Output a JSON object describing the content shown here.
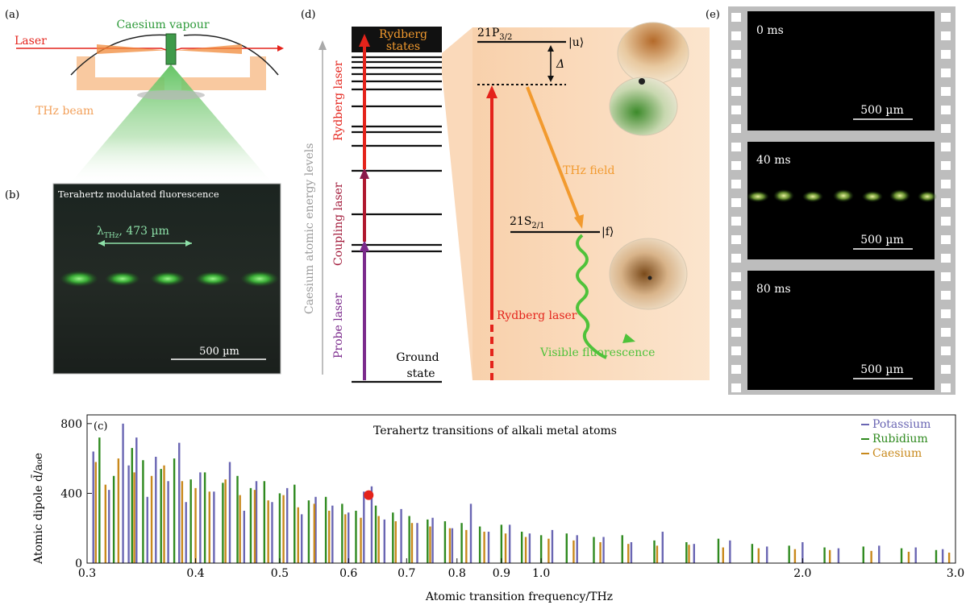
{
  "panel_a": {
    "tag": "(a)",
    "vapour_label": "Caesium vapour",
    "laser_label": "Laser",
    "thz_label": "THz beam"
  },
  "panel_b": {
    "tag": "(b)",
    "title": "Terahertz modulated fluorescence",
    "lambda_symbol": "λ",
    "lambda_sub": "THz",
    "lambda_value": ", 473 µm",
    "scalebar": "500 µm"
  },
  "panel_d": {
    "tag": "(d)",
    "axis_label": "Caesium atomic energy levels",
    "rydberg_states": [
      "Rydberg",
      "states"
    ],
    "ground_state": [
      "Ground",
      "state"
    ],
    "probe_laser": "Probe laser",
    "coupling_laser": "Coupling laser",
    "rydberg_laser_vertical": "Rydberg laser",
    "level_upper": "21P",
    "level_upper_sub": "3/2",
    "ket_upper": "|u⟩",
    "detuning": "Δ",
    "thz_field": "THz field",
    "level_lower": "21S",
    "level_lower_sub": "2/1",
    "ket_lower": "|f⟩",
    "rydberg_laser": "Rydberg laser",
    "visible_fluorescence": "Visible fluorescence"
  },
  "panel_e": {
    "tag": "(e)",
    "frames": [
      {
        "time": "0 ms",
        "scalebar": "500 µm"
      },
      {
        "time": "40 ms",
        "scalebar": "500 µm"
      },
      {
        "time": "80 ms",
        "scalebar": "500 µm"
      }
    ]
  },
  "colors": {
    "laser_red": "#e4231b",
    "probe_purple": "#7b2a8c",
    "thz_orange": "#f29a2e",
    "fluor_green": "#4fc23a",
    "potassium": "#6a66b3",
    "rubidium": "#2f8a1f",
    "caesium": "#c8891c"
  },
  "chart_data": {
    "type": "bar",
    "tag": "(c)",
    "title": "Terahertz transitions of alkali metal atoms",
    "xlabel": "Atomic transition frequency/THz",
    "ylabel": "Atomic dipole d̄/a₀e",
    "x_scale": "log",
    "xlim": [
      0.3,
      3.0
    ],
    "ylim": [
      0,
      850
    ],
    "x_ticks": [
      0.3,
      0.4,
      0.5,
      0.6,
      0.7,
      0.8,
      0.9,
      1.0,
      2.0,
      3.0
    ],
    "x_tick_labels": [
      "0.3",
      "0.4",
      "0.5",
      "0.6",
      "0.7",
      "0.8",
      "0.9",
      "1.0",
      "2.0",
      "3.0"
    ],
    "y_ticks": [
      0,
      400,
      800
    ],
    "y_tick_labels": [
      "0",
      "400",
      "800"
    ],
    "legend_position": "top-right",
    "highlight_point": {
      "x": 0.633,
      "y": 390
    },
    "series": [
      {
        "name": "Potassium",
        "color": "#6a66b3",
        "x": [
          0.305,
          0.318,
          0.33,
          0.335,
          0.342,
          0.352,
          0.36,
          0.372,
          0.383,
          0.39,
          0.405,
          0.42,
          0.438,
          0.455,
          0.47,
          0.49,
          0.51,
          0.53,
          0.55,
          0.575,
          0.6,
          0.625,
          0.638,
          0.66,
          0.69,
          0.72,
          0.75,
          0.79,
          0.83,
          0.87,
          0.92,
          0.97,
          1.03,
          1.1,
          1.18,
          1.27,
          1.38,
          1.5,
          1.65,
          1.82,
          2.0,
          2.2,
          2.45,
          2.7,
          2.9
        ],
        "values": [
          640,
          420,
          800,
          560,
          720,
          380,
          610,
          470,
          690,
          350,
          520,
          410,
          580,
          300,
          470,
          350,
          430,
          280,
          380,
          330,
          290,
          410,
          440,
          250,
          310,
          230,
          260,
          200,
          340,
          180,
          220,
          170,
          190,
          160,
          150,
          120,
          180,
          110,
          130,
          95,
          120,
          85,
          100,
          90,
          80
        ]
      },
      {
        "name": "Rubidium",
        "color": "#2f8a1f",
        "x": [
          0.31,
          0.322,
          0.338,
          0.348,
          0.365,
          0.378,
          0.395,
          0.41,
          0.43,
          0.447,
          0.463,
          0.48,
          0.5,
          0.52,
          0.54,
          0.565,
          0.59,
          0.612,
          0.645,
          0.675,
          0.705,
          0.74,
          0.775,
          0.81,
          0.85,
          0.9,
          0.95,
          1.0,
          1.07,
          1.15,
          1.24,
          1.35,
          1.47,
          1.6,
          1.75,
          1.93,
          2.12,
          2.35,
          2.6,
          2.85
        ],
        "values": [
          720,
          500,
          660,
          590,
          540,
          600,
          480,
          520,
          460,
          500,
          430,
          470,
          400,
          450,
          360,
          380,
          340,
          300,
          330,
          290,
          270,
          250,
          240,
          230,
          210,
          220,
          180,
          160,
          170,
          150,
          160,
          130,
          120,
          140,
          110,
          100,
          90,
          95,
          85,
          75
        ]
      },
      {
        "name": "Caesium",
        "color": "#c8891c",
        "x": [
          0.307,
          0.315,
          0.326,
          0.34,
          0.356,
          0.368,
          0.386,
          0.4,
          0.415,
          0.433,
          0.45,
          0.468,
          0.485,
          0.505,
          0.525,
          0.548,
          0.57,
          0.595,
          0.62,
          0.65,
          0.68,
          0.71,
          0.745,
          0.785,
          0.82,
          0.86,
          0.91,
          0.96,
          1.02,
          1.09,
          1.17,
          1.26,
          1.36,
          1.48,
          1.62,
          1.78,
          1.96,
          2.15,
          2.4,
          2.65,
          2.95
        ],
        "values": [
          580,
          450,
          600,
          520,
          500,
          560,
          470,
          430,
          410,
          480,
          390,
          420,
          360,
          390,
          320,
          340,
          300,
          280,
          260,
          270,
          240,
          230,
          210,
          200,
          190,
          180,
          170,
          150,
          140,
          130,
          120,
          110,
          100,
          105,
          90,
          85,
          80,
          75,
          70,
          65,
          60
        ]
      }
    ]
  }
}
